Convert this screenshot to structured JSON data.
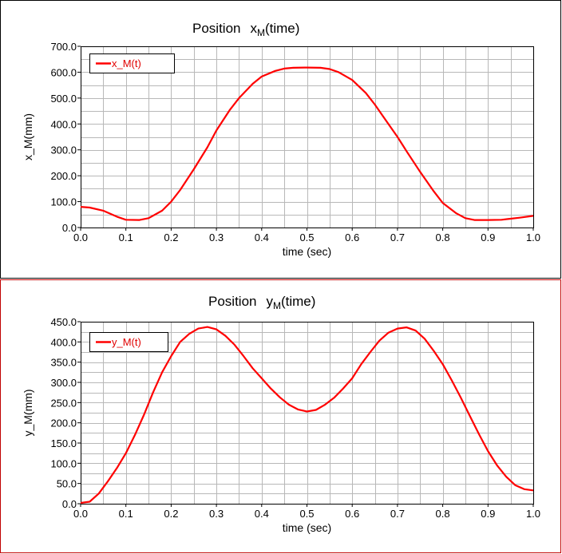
{
  "chart_data": [
    {
      "type": "line",
      "title": "Position",
      "title_var": "x",
      "title_sub": "M",
      "title_suffix": "(time)",
      "xlabel": "time (sec)",
      "ylabel": "x_M(mm)",
      "xlim": [
        0.0,
        1.0
      ],
      "ylim": [
        0.0,
        700.0
      ],
      "xticks": [
        "0.0",
        "0.1",
        "0.2",
        "0.3",
        "0.4",
        "0.5",
        "0.6",
        "0.7",
        "0.8",
        "0.9",
        "1.0"
      ],
      "yticks": [
        "0.0",
        "100.0",
        "200.0",
        "300.0",
        "400.0",
        "500.0",
        "600.0",
        "700.0"
      ],
      "grid": true,
      "legend_position": "top-left",
      "series": [
        {
          "name": "x_M(t)",
          "color": "#ff0000",
          "x": [
            0.0,
            0.02,
            0.05,
            0.08,
            0.1,
            0.13,
            0.15,
            0.18,
            0.2,
            0.22,
            0.25,
            0.28,
            0.3,
            0.33,
            0.35,
            0.38,
            0.4,
            0.43,
            0.45,
            0.47,
            0.5,
            0.53,
            0.55,
            0.57,
            0.6,
            0.63,
            0.65,
            0.67,
            0.7,
            0.72,
            0.75,
            0.78,
            0.8,
            0.83,
            0.85,
            0.87,
            0.9,
            0.93,
            0.95,
            0.97,
            1.0
          ],
          "y": [
            80,
            77,
            65,
            42,
            30,
            29,
            36,
            65,
            100,
            145,
            225,
            310,
            375,
            455,
            500,
            555,
            583,
            605,
            614,
            617,
            618,
            617,
            612,
            600,
            570,
            520,
            475,
            425,
            350,
            295,
            215,
            140,
            95,
            55,
            36,
            29,
            29,
            30,
            34,
            38,
            45
          ]
        }
      ]
    },
    {
      "type": "line",
      "title": "Position",
      "title_var": "y",
      "title_sub": "M",
      "title_suffix": "(time)",
      "xlabel": "time (sec)",
      "ylabel": "y_M(mm)",
      "xlim": [
        0.0,
        1.0
      ],
      "ylim": [
        0.0,
        450.0
      ],
      "xticks": [
        "0.0",
        "0.1",
        "0.2",
        "0.3",
        "0.4",
        "0.5",
        "0.6",
        "0.7",
        "0.8",
        "0.9",
        "1.0"
      ],
      "yticks": [
        "0.0",
        "50.0",
        "100.0",
        "150.0",
        "200.0",
        "250.0",
        "300.0",
        "350.0",
        "400.0",
        "450.0"
      ],
      "grid": true,
      "legend_position": "top-left",
      "series": [
        {
          "name": "y_M(t)",
          "color": "#ff0000",
          "x": [
            0.0,
            0.02,
            0.04,
            0.06,
            0.08,
            0.1,
            0.12,
            0.14,
            0.16,
            0.18,
            0.2,
            0.22,
            0.24,
            0.26,
            0.28,
            0.3,
            0.32,
            0.34,
            0.36,
            0.38,
            0.4,
            0.42,
            0.44,
            0.46,
            0.48,
            0.5,
            0.52,
            0.54,
            0.56,
            0.58,
            0.6,
            0.62,
            0.64,
            0.66,
            0.68,
            0.7,
            0.72,
            0.74,
            0.76,
            0.78,
            0.8,
            0.82,
            0.84,
            0.86,
            0.88,
            0.9,
            0.92,
            0.94,
            0.96,
            0.98,
            1.0
          ],
          "y": [
            2,
            5,
            25,
            55,
            88,
            125,
            170,
            220,
            275,
            325,
            365,
            400,
            420,
            433,
            437,
            431,
            415,
            393,
            365,
            335,
            310,
            285,
            263,
            245,
            233,
            228,
            232,
            245,
            262,
            285,
            310,
            345,
            375,
            403,
            423,
            433,
            436,
            428,
            408,
            378,
            345,
            305,
            262,
            217,
            172,
            130,
            95,
            67,
            46,
            36,
            33
          ]
        }
      ]
    }
  ]
}
